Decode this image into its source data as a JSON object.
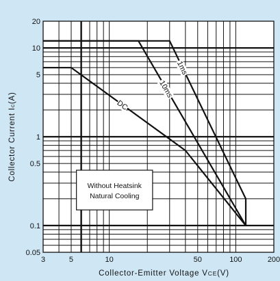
{
  "chart_data": {
    "type": "line",
    "xlabel": "Collector-Emitter Voltage VCE(V)",
    "xlabel_main": "Collector-Emitter Voltage V",
    "xlabel_sub": "CE",
    "xlabel_unit": "(V)",
    "ylabel": "Collector Current Ic(A)",
    "ylabel_main": "Collector Current I",
    "ylabel_sub": "c",
    "ylabel_unit": "(A)",
    "x_scale": "log",
    "y_scale": "log",
    "xlim": [
      3,
      200
    ],
    "ylim": [
      0.05,
      20
    ],
    "grid": true,
    "x_ticks": [
      3,
      5,
      10,
      50,
      100,
      200
    ],
    "x_tick_labels": [
      "3",
      "5",
      "10",
      "50",
      "100",
      "200"
    ],
    "y_ticks": [
      0.05,
      0.1,
      0.5,
      1,
      5,
      10,
      20
    ],
    "y_tick_labels": [
      "0.05",
      "0.1",
      "0.5",
      "1",
      "5",
      "10",
      "20"
    ],
    "series": [
      {
        "name": "1ms",
        "x": [
          3,
          30,
          120,
          120
        ],
        "y": [
          12,
          12,
          0.2,
          0.1
        ]
      },
      {
        "name": "10ms",
        "x": [
          3,
          17,
          120
        ],
        "y": [
          12,
          12,
          0.1
        ]
      },
      {
        "name": "DC",
        "x": [
          3,
          5,
          40,
          120
        ],
        "y": [
          6,
          6,
          0.7,
          0.1
        ]
      }
    ],
    "annotation": [
      "Without Heatsink",
      "Natural Cooling"
    ]
  },
  "colors": {
    "background": "#cfe7f5",
    "plot_area": "#ffffff",
    "grid": "#111111",
    "curves": "#111111"
  }
}
